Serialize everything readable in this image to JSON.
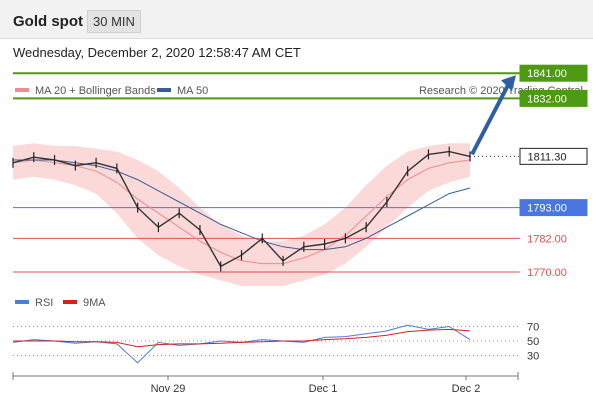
{
  "header": {
    "title": "Gold spot",
    "timeframe": "30 MIN",
    "datetime": "Wednesday, December 2, 2020 12:58:47 AM CET"
  },
  "legend": {
    "items": [
      {
        "label": "MA 20 + Bollinger Bands",
        "color": "#f28b8b"
      },
      {
        "label": "MA 50",
        "color": "#3a5c98"
      }
    ],
    "credit": "Research © 2020 Trading Central"
  },
  "rsi_legend": {
    "items": [
      {
        "label": "RSI",
        "color": "#4f7bd9"
      },
      {
        "label": "9MA",
        "color": "#d42020"
      }
    ]
  },
  "colors": {
    "up_resistance": "#4d9a12",
    "current_price": "#222222",
    "support_blue": "#4a76e0",
    "support_red": "#e05050",
    "arrow": "#2e5fa6",
    "band_fill": "#fbd9d9"
  },
  "chart_data": [
    {
      "type": "line",
      "title": "Gold spot",
      "x_ticks": [
        "Nov 29",
        "Dec 1",
        "Dec 2"
      ],
      "ylim": [
        1760,
        1850
      ],
      "levels": [
        {
          "value": 1841.0,
          "label": "1841.00",
          "kind": "resistance"
        },
        {
          "value": 1832.0,
          "label": "1832.00",
          "kind": "resistance"
        },
        {
          "value": 1811.3,
          "label": "1811.30",
          "kind": "current"
        },
        {
          "value": 1793.0,
          "label": "1793.00",
          "kind": "pivot"
        },
        {
          "value": 1782.0,
          "label": "1782.00",
          "kind": "support"
        },
        {
          "value": 1770.0,
          "label": "1770.00",
          "kind": "support"
        }
      ],
      "series": [
        {
          "name": "MA 20 + Bollinger Bands",
          "values": [
            1809,
            1810,
            1809,
            1808,
            1806,
            1802,
            1796,
            1791,
            1786,
            1781,
            1777,
            1774,
            1773,
            1773,
            1775,
            1778,
            1783,
            1790,
            1797,
            1803,
            1807,
            1809,
            1810
          ]
        },
        {
          "name": "MA 50",
          "values": [
            1810,
            1810,
            1810,
            1809,
            1808,
            1806,
            1803,
            1799,
            1795,
            1791,
            1787,
            1784,
            1781,
            1779,
            1778,
            1778,
            1779,
            1782,
            1786,
            1790,
            1794,
            1798,
            1800
          ]
        },
        {
          "name": "Price",
          "values": [
            1809,
            1811,
            1810,
            1808,
            1809,
            1807,
            1793,
            1786,
            1791,
            1785,
            1772,
            1776,
            1782,
            1774,
            1779,
            1780,
            1782,
            1786,
            1795,
            1806,
            1812,
            1813,
            1811.3
          ]
        }
      ]
    },
    {
      "type": "line",
      "title": "RSI",
      "ylim": [
        0,
        100
      ],
      "ticks": [
        70,
        50,
        30
      ],
      "series": [
        {
          "name": "RSI",
          "values": [
            48,
            52,
            50,
            47,
            49,
            46,
            20,
            48,
            44,
            46,
            50,
            48,
            52,
            50,
            48,
            55,
            56,
            60,
            64,
            72,
            66,
            70,
            52
          ]
        },
        {
          "name": "9MA",
          "values": [
            50,
            50,
            50,
            49,
            49,
            48,
            42,
            45,
            46,
            46,
            47,
            48,
            49,
            50,
            50,
            52,
            53,
            55,
            58,
            63,
            65,
            66,
            64
          ]
        }
      ]
    }
  ]
}
